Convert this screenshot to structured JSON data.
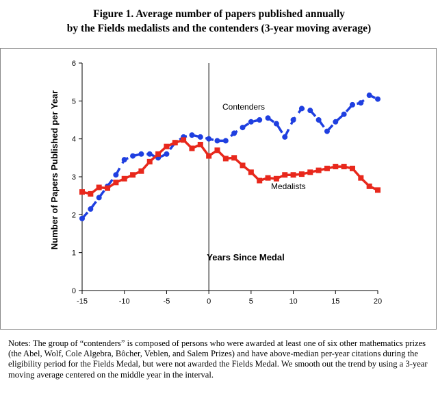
{
  "title_line1": "Figure 1. Average number of papers published annually",
  "title_line2": "by the Fields medalists and the contenders (3-year moving average)",
  "notes": "Notes: The group of “contenders” is composed of persons who were awarded at least one of six other mathematics prizes (the Abel, Wolf, Cole Algebra, Bôcher, Veblen, and Salem Prizes) and have above-median per-year citations during the eligibility period for the Fields Medal, but were not awarded the Fields Medal. We smooth out the trend by using a 3-year moving average centered on the middle year in the interval.",
  "chart_data": {
    "type": "line",
    "xlabel": "Years Since Medal",
    "ylabel": "Number of Papers Published per Year",
    "xlim": [
      -15,
      20
    ],
    "ylim": [
      0,
      6
    ],
    "xticks": [
      "-15",
      "-10",
      "-5",
      "0",
      "5",
      "10",
      "15",
      "20"
    ],
    "yticks": [
      "0",
      "1",
      "2",
      "3",
      "4",
      "5",
      "6"
    ],
    "reference_line_x": 0,
    "grid": false,
    "x": [
      -15,
      -14,
      -13,
      -12,
      -11,
      -10,
      -9,
      -8,
      -7,
      -6,
      -5,
      -4,
      -3,
      -2,
      -1,
      0,
      1,
      2,
      3,
      4,
      5,
      6,
      7,
      8,
      9,
      10,
      11,
      12,
      13,
      14,
      15,
      16,
      17,
      18,
      19,
      20
    ],
    "series": [
      {
        "name": "Contenders",
        "color": "#1f3fe0",
        "style": "dashed",
        "marker": "circle",
        "values": [
          1.9,
          2.15,
          2.45,
          2.75,
          3.05,
          3.45,
          3.55,
          3.6,
          3.6,
          3.5,
          3.6,
          3.9,
          4.05,
          4.1,
          4.05,
          4.0,
          3.95,
          3.95,
          4.15,
          4.3,
          4.45,
          4.5,
          4.55,
          4.4,
          4.05,
          4.5,
          4.8,
          4.75,
          4.5,
          4.2,
          4.45,
          4.65,
          4.9,
          4.95,
          5.15,
          5.05
        ]
      },
      {
        "name": "Medalists",
        "color": "#e8281c",
        "style": "solid",
        "marker": "square",
        "values": [
          2.6,
          2.55,
          2.72,
          2.7,
          2.85,
          2.95,
          3.05,
          3.15,
          3.4,
          3.6,
          3.8,
          3.9,
          3.97,
          3.75,
          3.85,
          3.55,
          3.7,
          3.48,
          3.5,
          3.3,
          3.12,
          2.9,
          2.97,
          2.95,
          3.05,
          3.05,
          3.07,
          3.12,
          3.17,
          3.22,
          3.27,
          3.27,
          3.22,
          2.97,
          2.75,
          2.65
        ]
      }
    ]
  }
}
